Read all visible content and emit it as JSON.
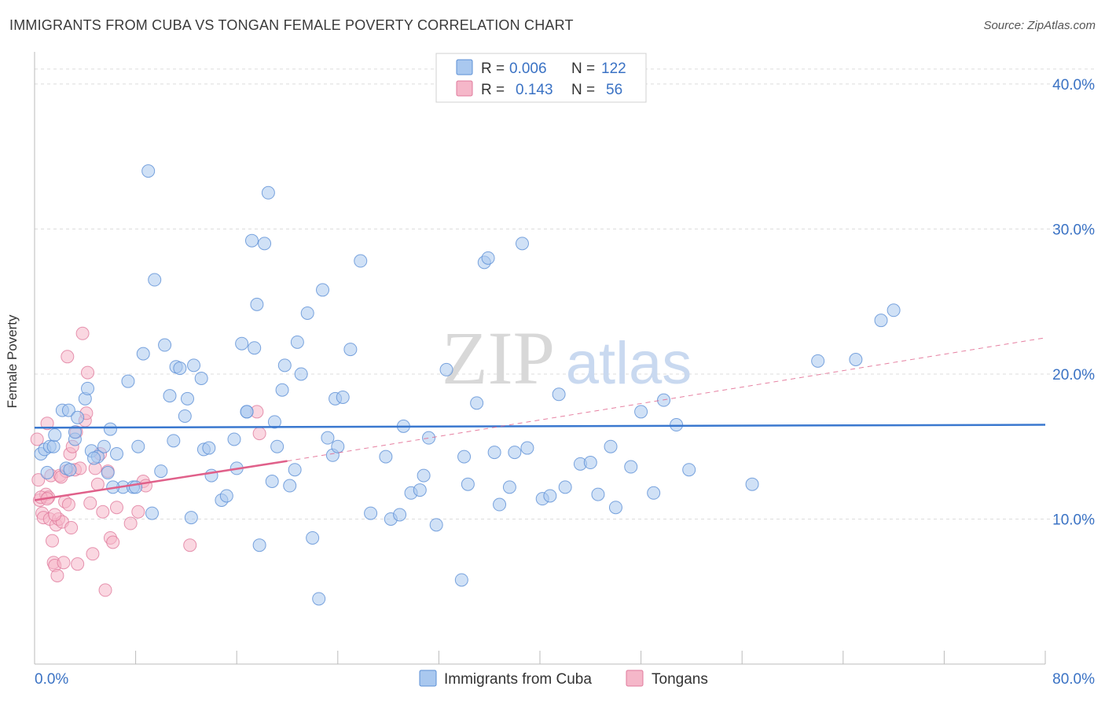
{
  "header": {
    "title": "IMMIGRANTS FROM CUBA VS TONGAN FEMALE POVERTY CORRELATION CHART",
    "source": "Source: ZipAtlas.com"
  },
  "watermark": {
    "zip": "ZIP",
    "atlas": "atlas"
  },
  "colors": {
    "blue_fill": "#a9c8ef",
    "blue_stroke": "#5b8fd6",
    "blue_line": "#3a78cf",
    "pink_fill": "#f5b7c9",
    "pink_stroke": "#e07a9c",
    "pink_line": "#e0608a",
    "tick_text": "#3a72c4",
    "grid": "#dcdcdc"
  },
  "legend_top": {
    "rows": [
      {
        "r_label": "R =",
        "r_value": "0.006",
        "n_label": "N =",
        "n_value": "122"
      },
      {
        "r_label": "R =",
        "r_value": "0.143",
        "n_label": "N =",
        "n_value": "56"
      }
    ]
  },
  "legend_bottom": {
    "items": [
      "Immigrants from Cuba",
      "Tongans"
    ]
  },
  "chart_data": {
    "type": "scatter",
    "title": "IMMIGRANTS FROM CUBA VS TONGAN FEMALE POVERTY CORRELATION CHART",
    "xlabel": "",
    "ylabel": "Female Poverty",
    "xlim": [
      0,
      80
    ],
    "ylim": [
      0,
      42
    ],
    "x_tick_labels": [
      "0.0%",
      "80.0%"
    ],
    "y_ticks": [
      10,
      20,
      30,
      40
    ],
    "y_tick_labels": [
      "10.0%",
      "20.0%",
      "30.0%",
      "40.0%"
    ],
    "grid": true,
    "legend_placement": "top-center",
    "series": [
      {
        "name": "Immigrants from Cuba",
        "color": "#a9c8ef",
        "points": [
          [
            0.5,
            14.5
          ],
          [
            0.8,
            14.8
          ],
          [
            1.0,
            13.2
          ],
          [
            1.2,
            15.0
          ],
          [
            1.5,
            15.0
          ],
          [
            1.6,
            15.8
          ],
          [
            2.2,
            17.5
          ],
          [
            2.5,
            13.5
          ],
          [
            2.7,
            17.5
          ],
          [
            3.2,
            15.5
          ],
          [
            3.4,
            17.0
          ],
          [
            3.2,
            16.0
          ],
          [
            4.0,
            18.3
          ],
          [
            4.2,
            19.0
          ],
          [
            4.5,
            14.7
          ],
          [
            5.0,
            14.3
          ],
          [
            5.5,
            15.0
          ],
          [
            5.8,
            13.2
          ],
          [
            6.0,
            16.2
          ],
          [
            6.5,
            14.5
          ],
          [
            7.0,
            12.2
          ],
          [
            7.4,
            19.5
          ],
          [
            7.8,
            12.2
          ],
          [
            8.2,
            15.0
          ],
          [
            8.6,
            21.4
          ],
          [
            9.0,
            34.0
          ],
          [
            9.3,
            10.4
          ],
          [
            9.5,
            26.5
          ],
          [
            10.0,
            13.3
          ],
          [
            10.3,
            22.0
          ],
          [
            10.7,
            18.5
          ],
          [
            11.0,
            15.4
          ],
          [
            11.2,
            20.5
          ],
          [
            11.5,
            20.4
          ],
          [
            11.9,
            17.1
          ],
          [
            12.1,
            18.3
          ],
          [
            12.4,
            10.1
          ],
          [
            12.6,
            20.6
          ],
          [
            13.2,
            19.7
          ],
          [
            13.4,
            14.8
          ],
          [
            13.8,
            14.9
          ],
          [
            14.0,
            13.0
          ],
          [
            14.8,
            11.3
          ],
          [
            15.2,
            11.6
          ],
          [
            15.8,
            15.5
          ],
          [
            16.0,
            13.5
          ],
          [
            16.4,
            22.1
          ],
          [
            16.8,
            17.4
          ],
          [
            17.2,
            29.2
          ],
          [
            17.4,
            21.8
          ],
          [
            17.6,
            24.8
          ],
          [
            17.8,
            8.2
          ],
          [
            18.2,
            29.0
          ],
          [
            18.5,
            32.5
          ],
          [
            18.8,
            12.6
          ],
          [
            19.0,
            16.7
          ],
          [
            19.2,
            15.0
          ],
          [
            19.6,
            18.9
          ],
          [
            19.8,
            20.6
          ],
          [
            20.2,
            12.3
          ],
          [
            20.6,
            13.4
          ],
          [
            20.8,
            22.2
          ],
          [
            21.1,
            20.0
          ],
          [
            21.6,
            24.2
          ],
          [
            22.0,
            8.7
          ],
          [
            22.5,
            4.5
          ],
          [
            22.8,
            25.8
          ],
          [
            23.2,
            15.6
          ],
          [
            23.6,
            14.4
          ],
          [
            23.8,
            18.3
          ],
          [
            24.0,
            15.0
          ],
          [
            24.4,
            18.4
          ],
          [
            25.0,
            21.7
          ],
          [
            25.8,
            27.8
          ],
          [
            26.6,
            10.4
          ],
          [
            27.8,
            14.3
          ],
          [
            28.2,
            10.0
          ],
          [
            28.9,
            10.3
          ],
          [
            29.2,
            16.4
          ],
          [
            29.8,
            11.8
          ],
          [
            30.5,
            12.0
          ],
          [
            30.8,
            13.0
          ],
          [
            31.2,
            15.6
          ],
          [
            31.8,
            9.6
          ],
          [
            32.6,
            20.3
          ],
          [
            33.8,
            5.8
          ],
          [
            34.0,
            14.3
          ],
          [
            34.3,
            12.4
          ],
          [
            35.0,
            18.0
          ],
          [
            35.6,
            27.7
          ],
          [
            35.9,
            28.0
          ],
          [
            36.4,
            14.6
          ],
          [
            36.8,
            11.0
          ],
          [
            37.6,
            12.2
          ],
          [
            38.0,
            14.6
          ],
          [
            38.6,
            29.0
          ],
          [
            39.0,
            14.9
          ],
          [
            40.2,
            11.4
          ],
          [
            40.8,
            11.6
          ],
          [
            41.5,
            18.6
          ],
          [
            42.0,
            12.2
          ],
          [
            43.2,
            13.8
          ],
          [
            44.0,
            13.9
          ],
          [
            44.6,
            11.7
          ],
          [
            45.6,
            15.0
          ],
          [
            46.0,
            10.8
          ],
          [
            47.2,
            13.6
          ],
          [
            48.0,
            17.4
          ],
          [
            49.0,
            11.8
          ],
          [
            49.8,
            18.2
          ],
          [
            50.8,
            16.5
          ],
          [
            51.8,
            13.4
          ],
          [
            56.8,
            12.4
          ],
          [
            62.0,
            20.9
          ],
          [
            65.0,
            21.0
          ],
          [
            68.0,
            24.4
          ],
          [
            67.0,
            23.7
          ],
          [
            6.2,
            12.2
          ],
          [
            2.8,
            13.4
          ],
          [
            8.0,
            12.2
          ],
          [
            16.8,
            17.4
          ],
          [
            4.7,
            14.2
          ]
        ]
      },
      {
        "name": "Tongans",
        "color": "#f5b7c9",
        "points": [
          [
            0.2,
            15.5
          ],
          [
            0.3,
            12.7
          ],
          [
            0.4,
            11.3
          ],
          [
            0.6,
            10.4
          ],
          [
            0.7,
            10.1
          ],
          [
            0.9,
            11.7
          ],
          [
            1.0,
            16.6
          ],
          [
            1.1,
            11.5
          ],
          [
            1.2,
            10.0
          ],
          [
            1.3,
            13.0
          ],
          [
            1.4,
            8.5
          ],
          [
            1.5,
            7.0
          ],
          [
            1.6,
            6.8
          ],
          [
            1.7,
            9.6
          ],
          [
            1.8,
            6.1
          ],
          [
            1.9,
            10.0
          ],
          [
            2.0,
            13.0
          ],
          [
            2.2,
            9.8
          ],
          [
            2.3,
            7.0
          ],
          [
            2.4,
            11.2
          ],
          [
            2.6,
            21.2
          ],
          [
            2.7,
            11.0
          ],
          [
            2.8,
            14.5
          ],
          [
            2.9,
            9.4
          ],
          [
            3.0,
            15.0
          ],
          [
            3.2,
            13.4
          ],
          [
            3.4,
            6.9
          ],
          [
            3.6,
            13.5
          ],
          [
            3.8,
            22.8
          ],
          [
            4.0,
            16.8
          ],
          [
            4.2,
            20.1
          ],
          [
            4.4,
            11.1
          ],
          [
            4.6,
            7.6
          ],
          [
            4.8,
            13.5
          ],
          [
            5.0,
            12.4
          ],
          [
            5.2,
            14.5
          ],
          [
            5.4,
            10.5
          ],
          [
            5.6,
            5.1
          ],
          [
            5.8,
            13.3
          ],
          [
            6.0,
            8.7
          ],
          [
            6.2,
            8.4
          ],
          [
            6.5,
            10.8
          ],
          [
            7.6,
            9.7
          ],
          [
            8.2,
            10.5
          ],
          [
            8.6,
            12.6
          ],
          [
            8.8,
            12.3
          ],
          [
            12.3,
            8.2
          ],
          [
            17.6,
            17.4
          ],
          [
            17.8,
            15.9
          ],
          [
            0.5,
            11.5
          ],
          [
            1.0,
            11.4
          ],
          [
            1.6,
            10.3
          ],
          [
            2.5,
            13.3
          ],
          [
            3.3,
            16.0
          ],
          [
            4.1,
            17.3
          ],
          [
            2.1,
            12.9
          ]
        ]
      }
    ],
    "trendlines": [
      {
        "series": "Immigrants from Cuba",
        "x": [
          0,
          80
        ],
        "y": [
          16.3,
          16.5
        ],
        "style": "solid"
      },
      {
        "series": "Tongans",
        "x": [
          0,
          20
        ],
        "y": [
          11.3,
          14.0
        ],
        "style": "solid"
      },
      {
        "series": "Tongans",
        "x": [
          20,
          80
        ],
        "y": [
          14.0,
          22.5
        ],
        "style": "dashed"
      }
    ]
  }
}
